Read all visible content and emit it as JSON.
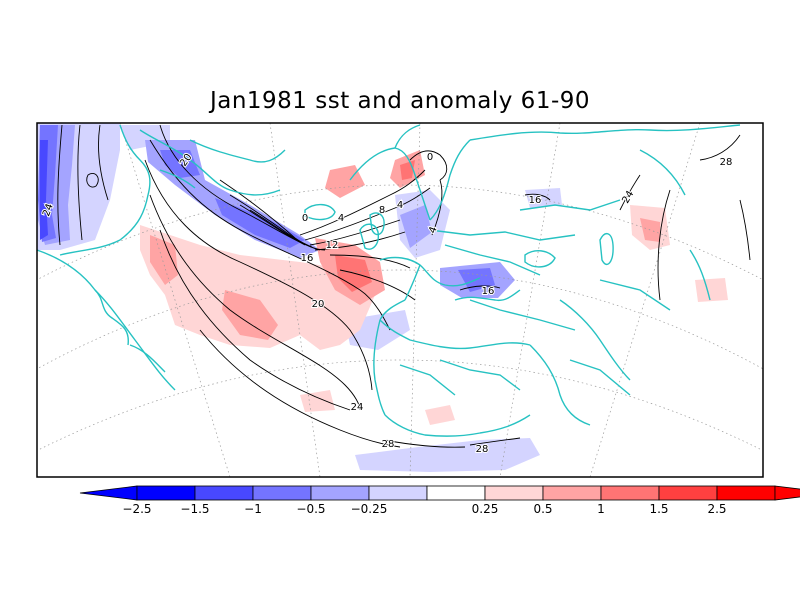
{
  "title": "Jan1981 sst and anomaly 61-90",
  "colors": {
    "coast": "#27c2c2",
    "contour": "#000000",
    "grid": "#9a9a9a",
    "neg": [
      "#0000ff",
      "#4848ff",
      "#7474ff",
      "#a4a4ff",
      "#d4d4ff"
    ],
    "pos": [
      "#ffd6d6",
      "#ffa4a4",
      "#ff7474",
      "#ff4040",
      "#ff0000"
    ]
  },
  "colorbar": {
    "labels": [
      "-2.5",
      "-1.5",
      "-1",
      "-0.5",
      "-0.25",
      "0.25",
      "0.5",
      "1",
      "1.5",
      "2.5"
    ],
    "unit_note": ""
  },
  "contour_labels": [
    "24",
    "20",
    "0",
    "4",
    "8",
    "12",
    "16",
    "20",
    "24",
    "28",
    "0",
    "4",
    "4",
    "16",
    "16",
    "24",
    "28",
    "28"
  ]
}
